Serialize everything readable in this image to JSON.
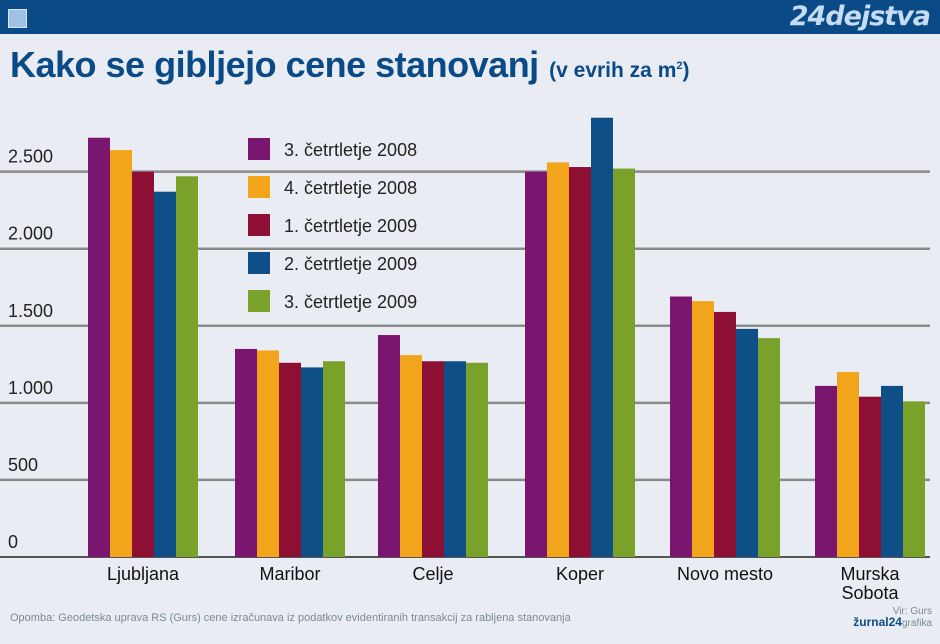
{
  "header": {
    "brand": "24dejstva",
    "title": "Kako se gibljejo cene stanovanj",
    "subtitle_prefix": "(v evrih za m",
    "subtitle_sup": "2",
    "subtitle_suffix": ")"
  },
  "chart_data": {
    "type": "bar",
    "title": "Kako se gibljejo cene stanovanj (v evrih za m2)",
    "xlabel": "",
    "ylabel": "",
    "ylim": [
      0,
      2900
    ],
    "yticks": [
      0,
      500,
      1000,
      1500,
      2000,
      2500
    ],
    "ytick_labels": [
      "0",
      "500",
      "1.000",
      "1.500",
      "2.000",
      "2.500"
    ],
    "grid": true,
    "legend_position": "top-center",
    "categories": [
      "Ljubljana",
      "Maribor",
      "Celje",
      "Koper",
      "Novo mesto",
      "Murska\nSobota"
    ],
    "series": [
      {
        "name": "3. četrtletje 2008",
        "color": "#7a1670",
        "values": [
          2720,
          1350,
          1440,
          2500,
          1690,
          1110
        ]
      },
      {
        "name": "4. četrtletje 2008",
        "color": "#f2a51a",
        "values": [
          2640,
          1340,
          1310,
          2560,
          1660,
          1200
        ]
      },
      {
        "name": "1. četrtletje 2009",
        "color": "#8e0f34",
        "values": [
          2500,
          1260,
          1270,
          2530,
          1590,
          1040
        ]
      },
      {
        "name": "2. četrtletje 2009",
        "color": "#0f4f88",
        "values": [
          2370,
          1230,
          1270,
          2850,
          1480,
          1110
        ]
      },
      {
        "name": "3. četrtletje 2009",
        "color": "#7aa12a",
        "values": [
          2470,
          1270,
          1260,
          2520,
          1420,
          1010
        ]
      }
    ]
  },
  "footer": {
    "note": "Opomba: Geodetska uprava RS (Gurs) cene izračunava iz podatkov evidentiranih transakcij za rabljena stanovanja",
    "credit_top": "Vir: Gurs",
    "credit_brand": "žurnal24",
    "credit_suffix": "grafika"
  }
}
